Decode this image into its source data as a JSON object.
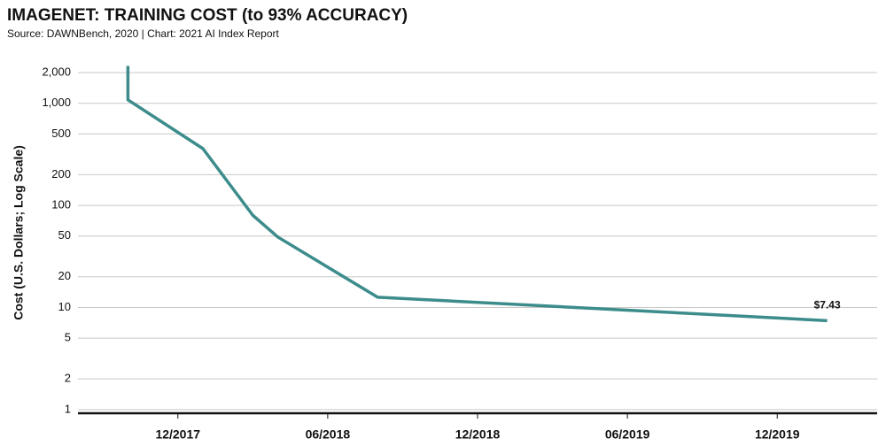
{
  "chart_data": {
    "type": "line",
    "title": "IMAGENET: TRAINING COST (to 93% ACCURACY)",
    "subtitle": "Source: DAWNBench, 2020 | Chart: 2021 AI Index Report",
    "y_label": "Cost (U.S. Dollars; Log Scale)",
    "x": [
      "10/2017",
      "10/2017",
      "01/2018",
      "03/2018",
      "04/2018",
      "08/2018",
      "02/2020"
    ],
    "series": [
      {
        "name": "Training cost",
        "color": "#3d8c8c",
        "values": [
          2320,
          1080,
          360,
          80,
          49,
          12.6,
          7.43
        ],
        "value_labels": [
          null,
          null,
          null,
          null,
          null,
          null,
          "$7.43"
        ]
      }
    ],
    "xlim": [
      "08/2017",
      "04/2020"
    ],
    "xticks": [
      "12/2017",
      "06/2018",
      "12/2018",
      "06/2019",
      "12/2019"
    ],
    "ylim": [
      0.92,
      3100
    ],
    "yticks": [
      1,
      2,
      5,
      10,
      20,
      50,
      100,
      200,
      500,
      {
        "value": 1000,
        "label": "1,000"
      },
      {
        "value": 2000,
        "label": "2,000"
      }
    ],
    "log_scale": true,
    "grid": true
  }
}
